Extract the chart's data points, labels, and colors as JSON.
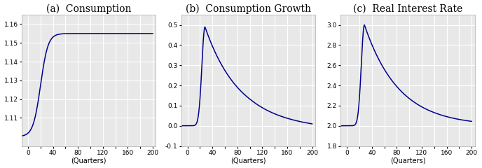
{
  "titles": [
    "(a)  Consumption",
    "(b)  Consumption Growth",
    "(c)  Real Interest Rate"
  ],
  "xlabel": "(Quarters)",
  "line_color": "#00008B",
  "xlim": [
    -10,
    205
  ],
  "xticks": [
    0,
    20,
    40,
    60,
    80,
    100,
    120,
    140,
    160,
    180,
    200
  ],
  "panel_a": {
    "ylim": [
      1.095,
      1.165
    ],
    "yticks": [
      1.11,
      1.12,
      1.13,
      1.14,
      1.15,
      1.16
    ],
    "ss_start": 1.1,
    "ss_end": 1.155,
    "shock_quarter": 20,
    "sigmoid_scale": 6.0
  },
  "panel_b": {
    "ylim": [
      -0.1,
      0.55
    ],
    "yticks": [
      -0.1,
      0.0,
      0.1,
      0.2,
      0.3,
      0.4,
      0.5
    ],
    "peak": 0.49,
    "peak_quarter": 28,
    "rise_scale": 5.0,
    "decay_scale": 55.0,
    "baseline": -0.012
  },
  "panel_c": {
    "ylim": [
      1.8,
      3.1
    ],
    "yticks": [
      1.8,
      2.0,
      2.2,
      2.4,
      2.6,
      2.8,
      3.0
    ],
    "ss_start": 2.0,
    "peak": 3.0,
    "peak_quarter": 28,
    "rise_scale": 5.0,
    "decay_scale": 55.0
  },
  "bg_color": "#e8e8e8",
  "grid_color": "#ffffff",
  "figsize": [
    6.88,
    2.4
  ],
  "dpi": 100,
  "title_fontsize": 10,
  "tick_fontsize": 6.5,
  "xlabel_fontsize": 7
}
